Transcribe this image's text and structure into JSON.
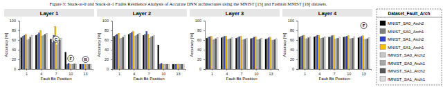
{
  "caption": "Figure 3: Stuck-at-0 and Stuck-at-1 Faults Resilience Analysis of Accurate DNN architectures using the MNIST [15] and Fashion MNIST [16] datasets.",
  "legend_title": "Dataset_Fault_Arch",
  "chart_data": [
    {
      "type": "bar",
      "title": "Layer 1",
      "x_label": "Fault Bit Position",
      "y_label": "Accuracy [%]",
      "categories": [
        "1",
        "4",
        "7",
        "10",
        "13"
      ],
      "ylim": [
        0,
        100
      ],
      "yticks": [
        0,
        20,
        40,
        60,
        80,
        100
      ],
      "grid": false,
      "series": [
        {
          "name": "MNIST_SA0_Arch2",
          "color": "#000000",
          "values": [
            65,
            70,
            62,
            35,
            10
          ]
        },
        {
          "name": "MNIST_SA0_Arch1",
          "color": "#7f7f7f",
          "values": [
            68,
            72,
            55,
            10,
            10
          ]
        },
        {
          "name": "MNIST_SA1_Arch2",
          "color": "#2f45c8",
          "values": [
            70,
            75,
            70,
            12,
            10
          ]
        },
        {
          "name": "MNIST_SA1_Arch1",
          "color": "#ffc000",
          "values": [
            72,
            80,
            88,
            10,
            10
          ]
        },
        {
          "name": "fMNIST_SA0_Arch2",
          "color": "#c8c8c8",
          "values": [
            60,
            68,
            50,
            10,
            10
          ]
        },
        {
          "name": "fMNIST_SA0_Arch1",
          "color": "#a6a6a6",
          "values": [
            62,
            70,
            55,
            10,
            10
          ]
        },
        {
          "name": "fMNIST_SA1_Arch2",
          "color": "#595959",
          "values": [
            66,
            72,
            60,
            11,
            10
          ]
        },
        {
          "name": "fMNIST_SA1_Arch1",
          "color": "#dcdcdc",
          "values": [
            70,
            74,
            64,
            10,
            10
          ]
        }
      ],
      "annotations": [
        {
          "text": "C",
          "category": "7",
          "y": 62
        },
        {
          "text": "F",
          "category": "10",
          "y": 22
        },
        {
          "text": "B",
          "category": "13",
          "y": 20
        }
      ]
    },
    {
      "type": "bar",
      "title": "Layer 2",
      "x_label": "Fault Bit Position",
      "y_label": "Accuracy [%]",
      "categories": [
        "1",
        "4",
        "7",
        "10",
        "13"
      ],
      "ylim": [
        0,
        100
      ],
      "yticks": [
        0,
        20,
        40,
        60,
        80,
        100
      ],
      "grid": false,
      "series": [
        {
          "name": "MNIST_SA0_Arch2",
          "color": "#000000",
          "values": [
            68,
            72,
            70,
            50,
            10
          ]
        },
        {
          "name": "MNIST_SA0_Arch1",
          "color": "#7f7f7f",
          "values": [
            70,
            74,
            72,
            10,
            10
          ]
        },
        {
          "name": "MNIST_SA1_Arch2",
          "color": "#2f45c8",
          "values": [
            72,
            76,
            78,
            12,
            10
          ]
        },
        {
          "name": "MNIST_SA1_Arch1",
          "color": "#ffc000",
          "values": [
            74,
            78,
            72,
            10,
            10
          ]
        },
        {
          "name": "fMNIST_SA0_Arch2",
          "color": "#c8c8c8",
          "values": [
            62,
            68,
            64,
            10,
            10
          ]
        },
        {
          "name": "fMNIST_SA0_Arch1",
          "color": "#a6a6a6",
          "values": [
            64,
            70,
            66,
            10,
            10
          ]
        },
        {
          "name": "fMNIST_SA1_Arch2",
          "color": "#595959",
          "values": [
            66,
            72,
            68,
            10,
            10
          ]
        },
        {
          "name": "fMNIST_SA1_Arch1",
          "color": "#dcdcdc",
          "values": [
            70,
            74,
            70,
            10,
            10
          ]
        }
      ],
      "annotations": []
    },
    {
      "type": "bar",
      "title": "Layer 3",
      "x_label": "Fault Bit Position",
      "y_label": "Accuracy [%]",
      "categories": [
        "1",
        "4",
        "7",
        "10",
        "13"
      ],
      "ylim": [
        0,
        100
      ],
      "yticks": [
        0,
        20,
        40,
        60,
        80,
        100
      ],
      "grid": false,
      "series": [
        {
          "name": "MNIST_SA0_Arch2",
          "color": "#000000",
          "values": [
            64,
            65,
            64,
            63,
            62
          ]
        },
        {
          "name": "MNIST_SA0_Arch1",
          "color": "#7f7f7f",
          "values": [
            66,
            66,
            65,
            64,
            63
          ]
        },
        {
          "name": "MNIST_SA1_Arch2",
          "color": "#2f45c8",
          "values": [
            67,
            68,
            67,
            66,
            65
          ]
        },
        {
          "name": "MNIST_SA1_Arch1",
          "color": "#ffc000",
          "values": [
            68,
            68,
            68,
            67,
            66
          ]
        },
        {
          "name": "fMNIST_SA0_Arch2",
          "color": "#c8c8c8",
          "values": [
            60,
            61,
            60,
            60,
            59
          ]
        },
        {
          "name": "fMNIST_SA0_Arch1",
          "color": "#a6a6a6",
          "values": [
            61,
            62,
            61,
            61,
            60
          ]
        },
        {
          "name": "fMNIST_SA1_Arch2",
          "color": "#595959",
          "values": [
            63,
            63,
            62,
            62,
            61
          ]
        },
        {
          "name": "fMNIST_SA1_Arch1",
          "color": "#dcdcdc",
          "values": [
            65,
            65,
            64,
            64,
            63
          ]
        }
      ],
      "annotations": []
    },
    {
      "type": "bar",
      "title": "Layer 4",
      "x_label": "Fault Bit Position",
      "y_label": "Accuracy [%]",
      "categories": [
        "1",
        "4",
        "7",
        "10",
        "13"
      ],
      "ylim": [
        0,
        100
      ],
      "yticks": [
        0,
        20,
        40,
        60,
        80,
        100
      ],
      "grid": false,
      "legend": "right",
      "series": [
        {
          "name": "MNIST_SA0_Arch2",
          "color": "#000000",
          "values": [
            66,
            67,
            66,
            66,
            65
          ]
        },
        {
          "name": "MNIST_SA0_Arch1",
          "color": "#7f7f7f",
          "values": [
            68,
            68,
            67,
            67,
            66
          ]
        },
        {
          "name": "MNIST_SA1_Arch2",
          "color": "#2f45c8",
          "values": [
            69,
            70,
            69,
            68,
            68
          ]
        },
        {
          "name": "MNIST_SA1_Arch1",
          "color": "#ffc000",
          "values": [
            70,
            70,
            70,
            69,
            69
          ]
        },
        {
          "name": "fMNIST_SA0_Arch2",
          "color": "#c8c8c8",
          "values": [
            62,
            63,
            62,
            62,
            61
          ]
        },
        {
          "name": "fMNIST_SA0_Arch1",
          "color": "#a6a6a6",
          "values": [
            63,
            64,
            63,
            63,
            62
          ]
        },
        {
          "name": "fMNIST_SA1_Arch2",
          "color": "#595959",
          "values": [
            65,
            65,
            64,
            64,
            63
          ]
        },
        {
          "name": "fMNIST_SA1_Arch1",
          "color": "#dcdcdc",
          "values": [
            67,
            67,
            66,
            66,
            65
          ]
        }
      ],
      "annotations": [
        {
          "text": "F",
          "category": "13",
          "y": 90
        }
      ]
    }
  ]
}
